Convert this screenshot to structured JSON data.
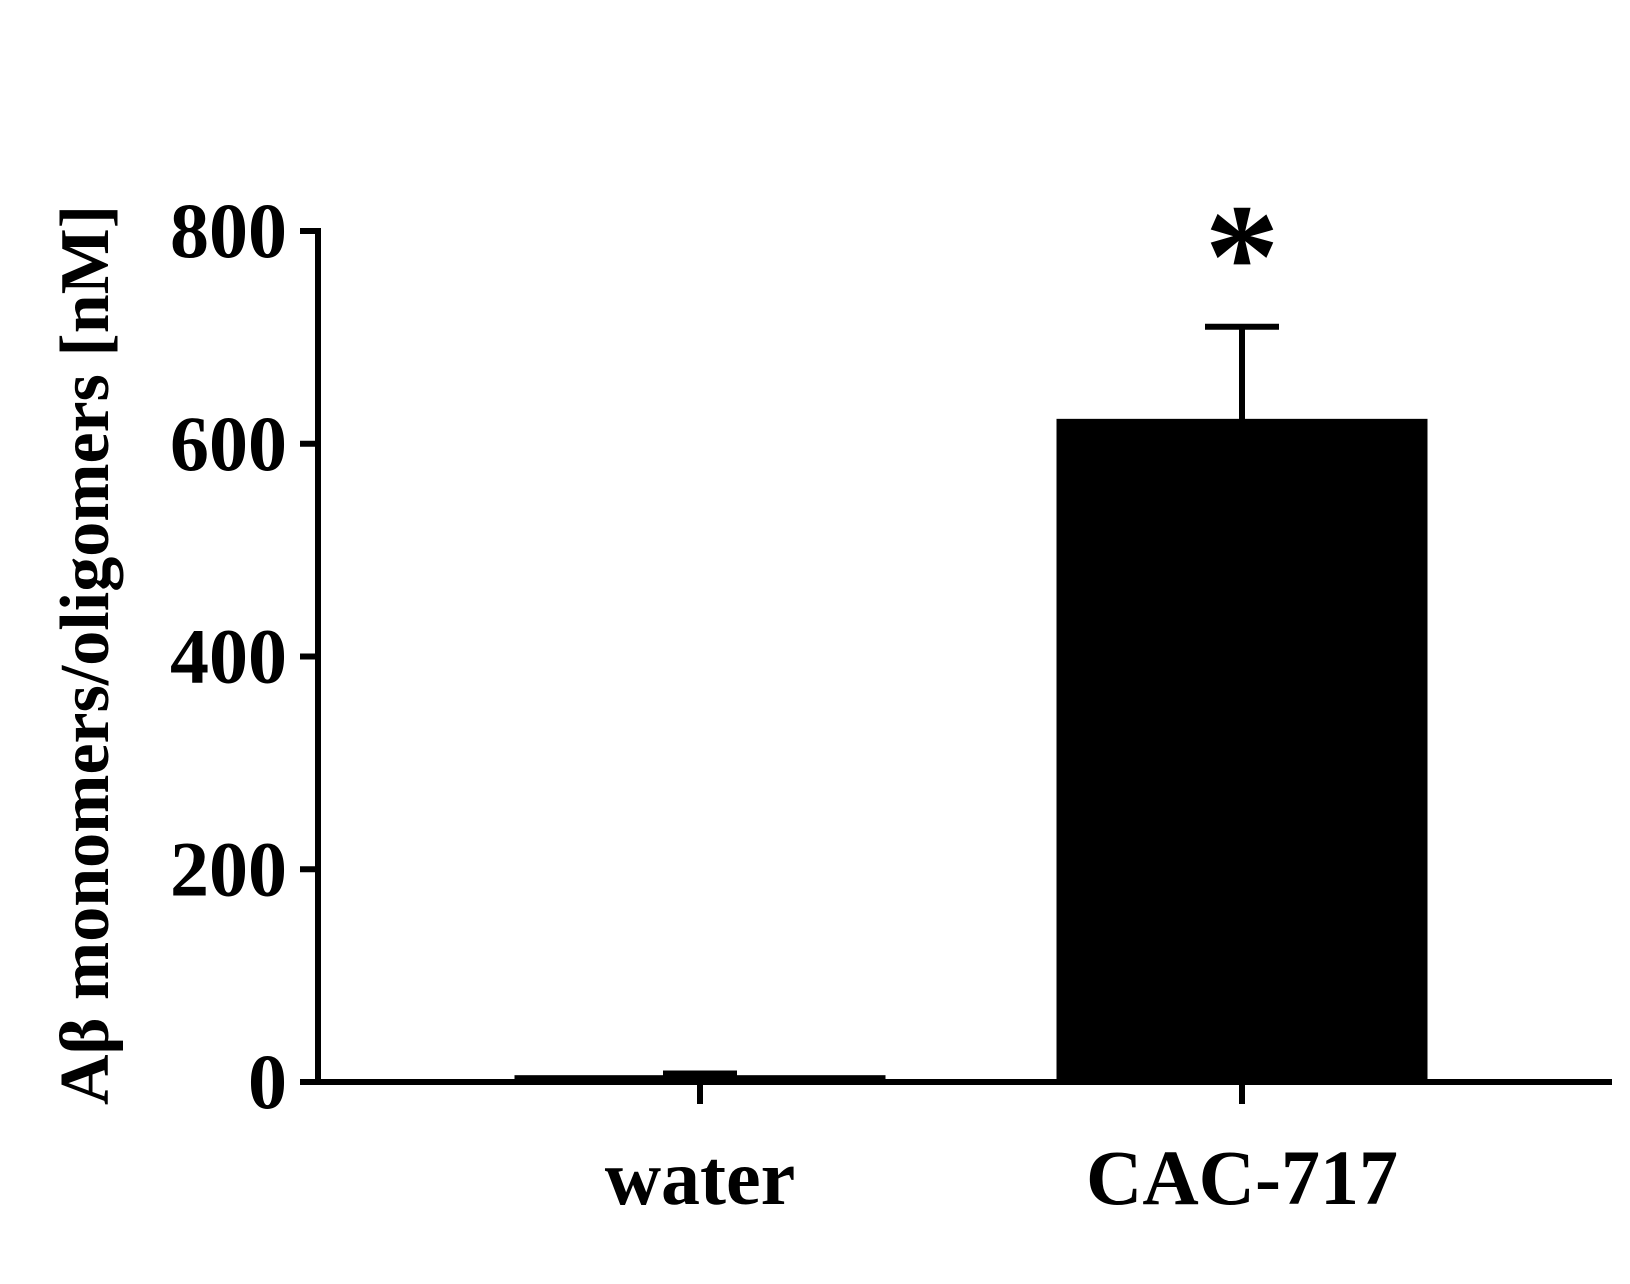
{
  "chart_data": {
    "type": "bar",
    "categories": [
      "water",
      "CAC-717"
    ],
    "values": [
      5,
      622
    ],
    "error": [
      3,
      88
    ],
    "significance": [
      "",
      "*"
    ],
    "title": "",
    "xlabel": "",
    "ylabel": "Aβ  monomers/oligomers [nM]",
    "ylim": [
      0,
      800
    ],
    "yticks": [
      "0",
      "200",
      "400",
      "600",
      "800"
    ],
    "grid": false,
    "legend": "none",
    "bar_color": "#000000"
  }
}
